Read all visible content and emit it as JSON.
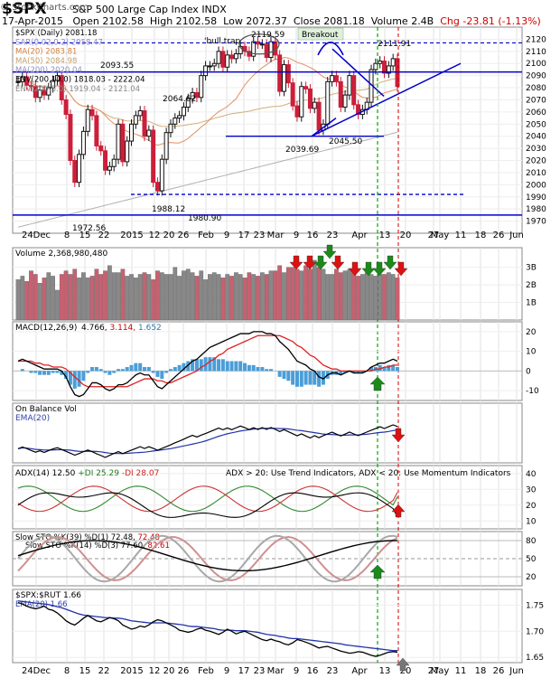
{
  "header": {
    "symbol": "$SPX",
    "name": "S&P 500 Large Cap Index",
    "exchange": "INDX",
    "date": "17-Apr-2015",
    "open": "Open 2102.58",
    "high": "High 2102.58",
    "low": "Low 2072.37",
    "close": "Close 2081.18",
    "volume": "Volume 2.4B",
    "chg": "Chg -23.81 (-1.13%)",
    "brand": "© StockCharts.com"
  },
  "colors": {
    "up": "#111111",
    "down": "#cc1f3a",
    "volume_up": "#888888",
    "volume_down": "#c86070",
    "blue": "#0000cc",
    "green_line": "#00aa00",
    "red_line": "#cc0000"
  },
  "chart_data": [
    {
      "type": "candlestick",
      "panel": "price",
      "legend": [
        "$SPX (Daily) 2081.18",
        "SAR(0.02,0.2) 2058.47",
        "MA(20) 2083.81",
        "MA(50) 2084.98",
        "MA(200) 2020.04",
        "ENV(200,10.0) 1818.03 - 2222.04",
        "ENV(200,5.0) 1919.04 - 2121.04"
      ],
      "ylim": [
        1960,
        2130
      ],
      "yticks": [
        1970,
        1980,
        1990,
        2000,
        2010,
        2020,
        2030,
        2040,
        2050,
        2060,
        2070,
        2080,
        2090,
        2100,
        2110,
        2120
      ],
      "xticks": [
        "24Dec",
        "8",
        "15",
        "22",
        "2015",
        "12",
        "20",
        "26",
        "Feb",
        "9",
        "17",
        "23",
        "Mar",
        "9",
        "16",
        "23",
        "Apr",
        "13",
        "20",
        "27",
        "May",
        "11",
        "18",
        "26",
        "Jun"
      ],
      "closes": [
        2085,
        2089,
        2082,
        2081,
        2072,
        2078,
        2074,
        2080,
        2086,
        2090,
        2070,
        2058,
        2020,
        2002,
        2025,
        2044,
        2062,
        2057,
        2032,
        2028,
        2012,
        2015,
        2021,
        2050,
        2019,
        2036,
        2050,
        2057,
        2061,
        2040,
        2045,
        2002,
        1995,
        2021,
        2043,
        2050,
        2055,
        2057,
        2064,
        2071,
        2076,
        2072,
        2090,
        2098,
        2098,
        2100,
        2110,
        2097,
        2107,
        2104,
        2108,
        2114,
        2110,
        2106,
        2118,
        2116,
        2116,
        2105,
        2118,
        2107,
        2077,
        2099,
        2084,
        2065,
        2056,
        2081,
        2079,
        2063,
        2068,
        2045,
        2050,
        2085,
        2090,
        2085,
        2064,
        2074,
        2090,
        2066,
        2058,
        2062,
        2068,
        2095,
        2100,
        2102,
        2092,
        2098,
        2104,
        2081
      ],
      "annotations": [
        {
          "text": "'bull trap"
        },
        {
          "text": "2119.59"
        },
        {
          "text": "Breakout"
        },
        {
          "text": "2111.91"
        },
        {
          "text": "2093.55"
        },
        {
          "text": "2064.62"
        },
        {
          "text": "2039.69"
        },
        {
          "text": "2045.50"
        },
        {
          "text": "1988.12"
        },
        {
          "text": "1980.90"
        },
        {
          "text": "1972.56"
        }
      ],
      "support_resistance": [
        2117,
        2093,
        2040,
        1992,
        1975
      ]
    },
    {
      "type": "bar",
      "panel": "volume",
      "title": "Volume 2,368,980,480",
      "yticks": [
        "1B",
        "2B",
        "3B"
      ],
      "values": [
        2.3,
        2.5,
        2.2,
        2.8,
        2.6,
        2.1,
        2.4,
        2.7,
        2.5,
        1.7,
        2.6,
        2.8,
        2.6,
        2.9,
        2.4,
        2.7,
        2.4,
        2.5,
        2.9,
        2.6,
        2.8,
        3.1,
        2.7,
        2.7,
        2.9,
        2.5,
        2.6,
        2.4,
        2.6,
        2.7,
        2.6,
        2.3,
        2.8,
        2.7,
        2.6,
        2.6,
        3.0,
        2.5,
        2.8,
        2.9,
        2.7,
        2.5,
        2.8,
        2.3,
        2.6,
        2.7,
        2.6,
        2.4,
        2.6,
        2.5,
        2.7,
        2.6,
        2.4,
        2.7,
        2.6,
        2.5,
        2.7,
        2.6,
        2.8,
        2.8,
        3.1,
        2.7,
        3.0,
        3.0,
        2.9,
        2.8,
        3.1,
        2.9,
        3.4,
        3.0,
        2.9,
        2.6,
        2.6,
        2.9,
        2.7,
        2.8,
        2.9,
        2.7,
        2.5,
        2.6,
        2.7,
        2.6,
        2.5,
        2.6,
        2.6,
        2.7,
        2.6,
        2.4
      ]
    },
    {
      "type": "line",
      "panel": "macd",
      "title": "MACD(12,26,9)",
      "values_text": [
        "4.766",
        "3.114",
        "1.652"
      ],
      "yticks": [
        -10,
        0,
        10,
        20
      ],
      "macd": [
        5,
        6,
        5,
        4,
        3,
        2,
        1,
        1,
        1,
        1,
        0,
        -3,
        -8,
        -12,
        -13,
        -12,
        -9,
        -6,
        -6,
        -7,
        -9,
        -10,
        -9,
        -7,
        -7,
        -6,
        -4,
        -2,
        -1,
        -2,
        -2,
        -5,
        -8,
        -9,
        -7,
        -5,
        -3,
        -1,
        1,
        3,
        5,
        6,
        8,
        10,
        12,
        13,
        14,
        15,
        16,
        17,
        18,
        19,
        19,
        19,
        20,
        20,
        20,
        19,
        19,
        18,
        15,
        13,
        11,
        8,
        5,
        4,
        3,
        1,
        0,
        -3,
        -4,
        -2,
        -1,
        -1,
        -2,
        -1,
        0,
        -1,
        -1,
        -1,
        0,
        2,
        3,
        4,
        4,
        5,
        6,
        5
      ],
      "signal": [
        5,
        5,
        5,
        5,
        4,
        4,
        3,
        3,
        2,
        2,
        2,
        1,
        -1,
        -3,
        -5,
        -7,
        -8,
        -8,
        -8,
        -8,
        -8,
        -8,
        -8,
        -8,
        -8,
        -8,
        -7,
        -6,
        -5,
        -4,
        -4,
        -4,
        -5,
        -5,
        -6,
        -6,
        -5,
        -4,
        -3,
        -2,
        -1,
        0,
        2,
        3,
        5,
        6,
        8,
        9,
        11,
        12,
        13,
        14,
        15,
        16,
        17,
        18,
        18,
        18,
        18,
        18,
        18,
        17,
        16,
        15,
        13,
        12,
        10,
        8,
        7,
        5,
        3,
        2,
        1,
        1,
        0,
        0,
        0,
        0,
        0,
        0,
        0,
        0,
        1,
        1,
        2,
        2,
        3,
        3
      ]
    },
    {
      "type": "line",
      "panel": "obv",
      "title": "On Balance Vol",
      "ema_label": "EMA(20)"
    },
    {
      "type": "line",
      "panel": "adx",
      "title": "ADX(14) 12.50",
      "plus": "+DI 25.29",
      "minus": "-DI 28.07",
      "note": "ADX > 20: Use Trend Indicators, ADX < 20: Use Momentum Indicators",
      "yticks": [
        10,
        20,
        30,
        40
      ]
    },
    {
      "type": "line",
      "panel": "sto1",
      "title": "Slow STO %K(39) %D(1)",
      "k": "72.48",
      "d": "72.48",
      "yticks": [
        20,
        50,
        80
      ]
    },
    {
      "type": "line",
      "panel": "sto2",
      "title": "Slow STO %K(14) %D(3)",
      "k": "77.60",
      "d": "82.61"
    },
    {
      "type": "line",
      "panel": "ratio",
      "title": "$SPX:$RUT 1.66",
      "ema_label": "EMA(20) 1.66",
      "yticks": [
        1.65,
        1.7,
        1.75
      ],
      "ylim": [
        1.64,
        1.78
      ],
      "values": [
        1.755,
        1.752,
        1.748,
        1.745,
        1.743,
        1.745,
        1.748,
        1.742,
        1.74,
        1.735,
        1.728,
        1.72,
        1.715,
        1.712,
        1.718,
        1.725,
        1.73,
        1.725,
        1.72,
        1.718,
        1.722,
        1.726,
        1.724,
        1.72,
        1.712,
        1.708,
        1.704,
        1.706,
        1.71,
        1.708,
        1.712,
        1.718,
        1.722,
        1.72,
        1.716,
        1.712,
        1.708,
        1.702,
        1.7,
        1.698,
        1.7,
        1.704,
        1.706,
        1.702,
        1.7,
        1.697,
        1.694,
        1.698,
        1.704,
        1.7,
        1.695,
        1.698,
        1.7,
        1.696,
        1.692,
        1.688,
        1.684,
        1.682,
        1.685,
        1.682,
        1.68,
        1.676,
        1.674,
        1.678,
        1.684,
        1.682,
        1.679,
        1.676,
        1.672,
        1.668,
        1.67,
        1.671,
        1.668,
        1.665,
        1.662,
        1.66,
        1.658,
        1.659,
        1.661,
        1.66,
        1.657,
        1.654,
        1.652,
        1.654,
        1.657,
        1.66,
        1.661,
        1.66
      ],
      "ema": [
        1.758,
        1.757,
        1.756,
        1.755,
        1.754,
        1.753,
        1.752,
        1.751,
        1.749,
        1.747,
        1.745,
        1.742,
        1.739,
        1.736,
        1.733,
        1.731,
        1.73,
        1.729,
        1.728,
        1.727,
        1.726,
        1.726,
        1.725,
        1.725,
        1.724,
        1.722,
        1.72,
        1.719,
        1.718,
        1.717,
        1.716,
        1.716,
        1.716,
        1.716,
        1.716,
        1.715,
        1.714,
        1.713,
        1.712,
        1.71,
        1.709,
        1.709,
        1.708,
        1.707,
        1.706,
        1.705,
        1.703,
        1.702,
        1.702,
        1.702,
        1.701,
        1.701,
        1.701,
        1.7,
        1.699,
        1.698,
        1.696,
        1.694,
        1.693,
        1.692,
        1.69,
        1.689,
        1.687,
        1.686,
        1.686,
        1.685,
        1.684,
        1.683,
        1.682,
        1.681,
        1.68,
        1.679,
        1.678,
        1.677,
        1.676,
        1.674,
        1.673,
        1.672,
        1.671,
        1.67,
        1.669,
        1.668,
        1.667,
        1.666,
        1.665,
        1.664,
        1.663,
        1.663
      ]
    }
  ]
}
